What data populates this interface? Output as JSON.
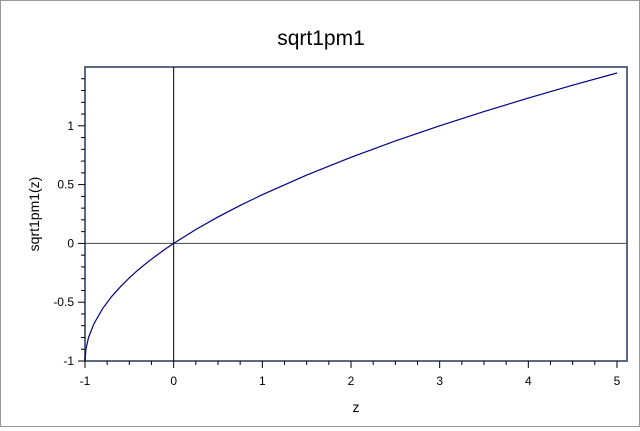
{
  "chart_data": {
    "type": "line",
    "title": "sqrt1pm1",
    "xlabel": "z",
    "ylabel": "sqrt1pm1(z)",
    "xlim": [
      -1,
      5
    ],
    "ylim": [
      -1,
      1.5
    ],
    "x_ticks": [
      -1,
      0,
      1,
      2,
      3,
      4,
      5
    ],
    "x_tick_labels": [
      "-1",
      "0",
      "1",
      "2",
      "3",
      "4",
      "5"
    ],
    "y_ticks": [
      -1,
      -0.5,
      0,
      0.5,
      1
    ],
    "y_tick_labels": [
      "-1",
      "-0.5",
      "0",
      "0.5",
      "1"
    ],
    "grid": false,
    "legend": "none",
    "series": [
      {
        "color": "#00008b",
        "x": [
          -1,
          -0.99,
          -0.96,
          -0.9,
          -0.8,
          -0.7,
          -0.6,
          -0.5,
          -0.4,
          -0.3,
          -0.2,
          -0.1,
          0,
          0.25,
          0.5,
          0.75,
          1,
          1.5,
          2,
          2.5,
          3,
          3.5,
          4,
          4.5,
          5
        ],
        "y": [
          -1,
          -0.9,
          -0.8,
          -0.684,
          -0.553,
          -0.452,
          -0.368,
          -0.293,
          -0.225,
          -0.163,
          -0.106,
          -0.051,
          0,
          0.118,
          0.225,
          0.323,
          0.414,
          0.581,
          0.732,
          0.871,
          1,
          1.121,
          1.236,
          1.345,
          1.449
        ]
      }
    ],
    "reference_lines": {
      "x_zero_color": "#000000",
      "y_zero_color": "#444444"
    },
    "plot_border_color": "#5a6a82"
  }
}
